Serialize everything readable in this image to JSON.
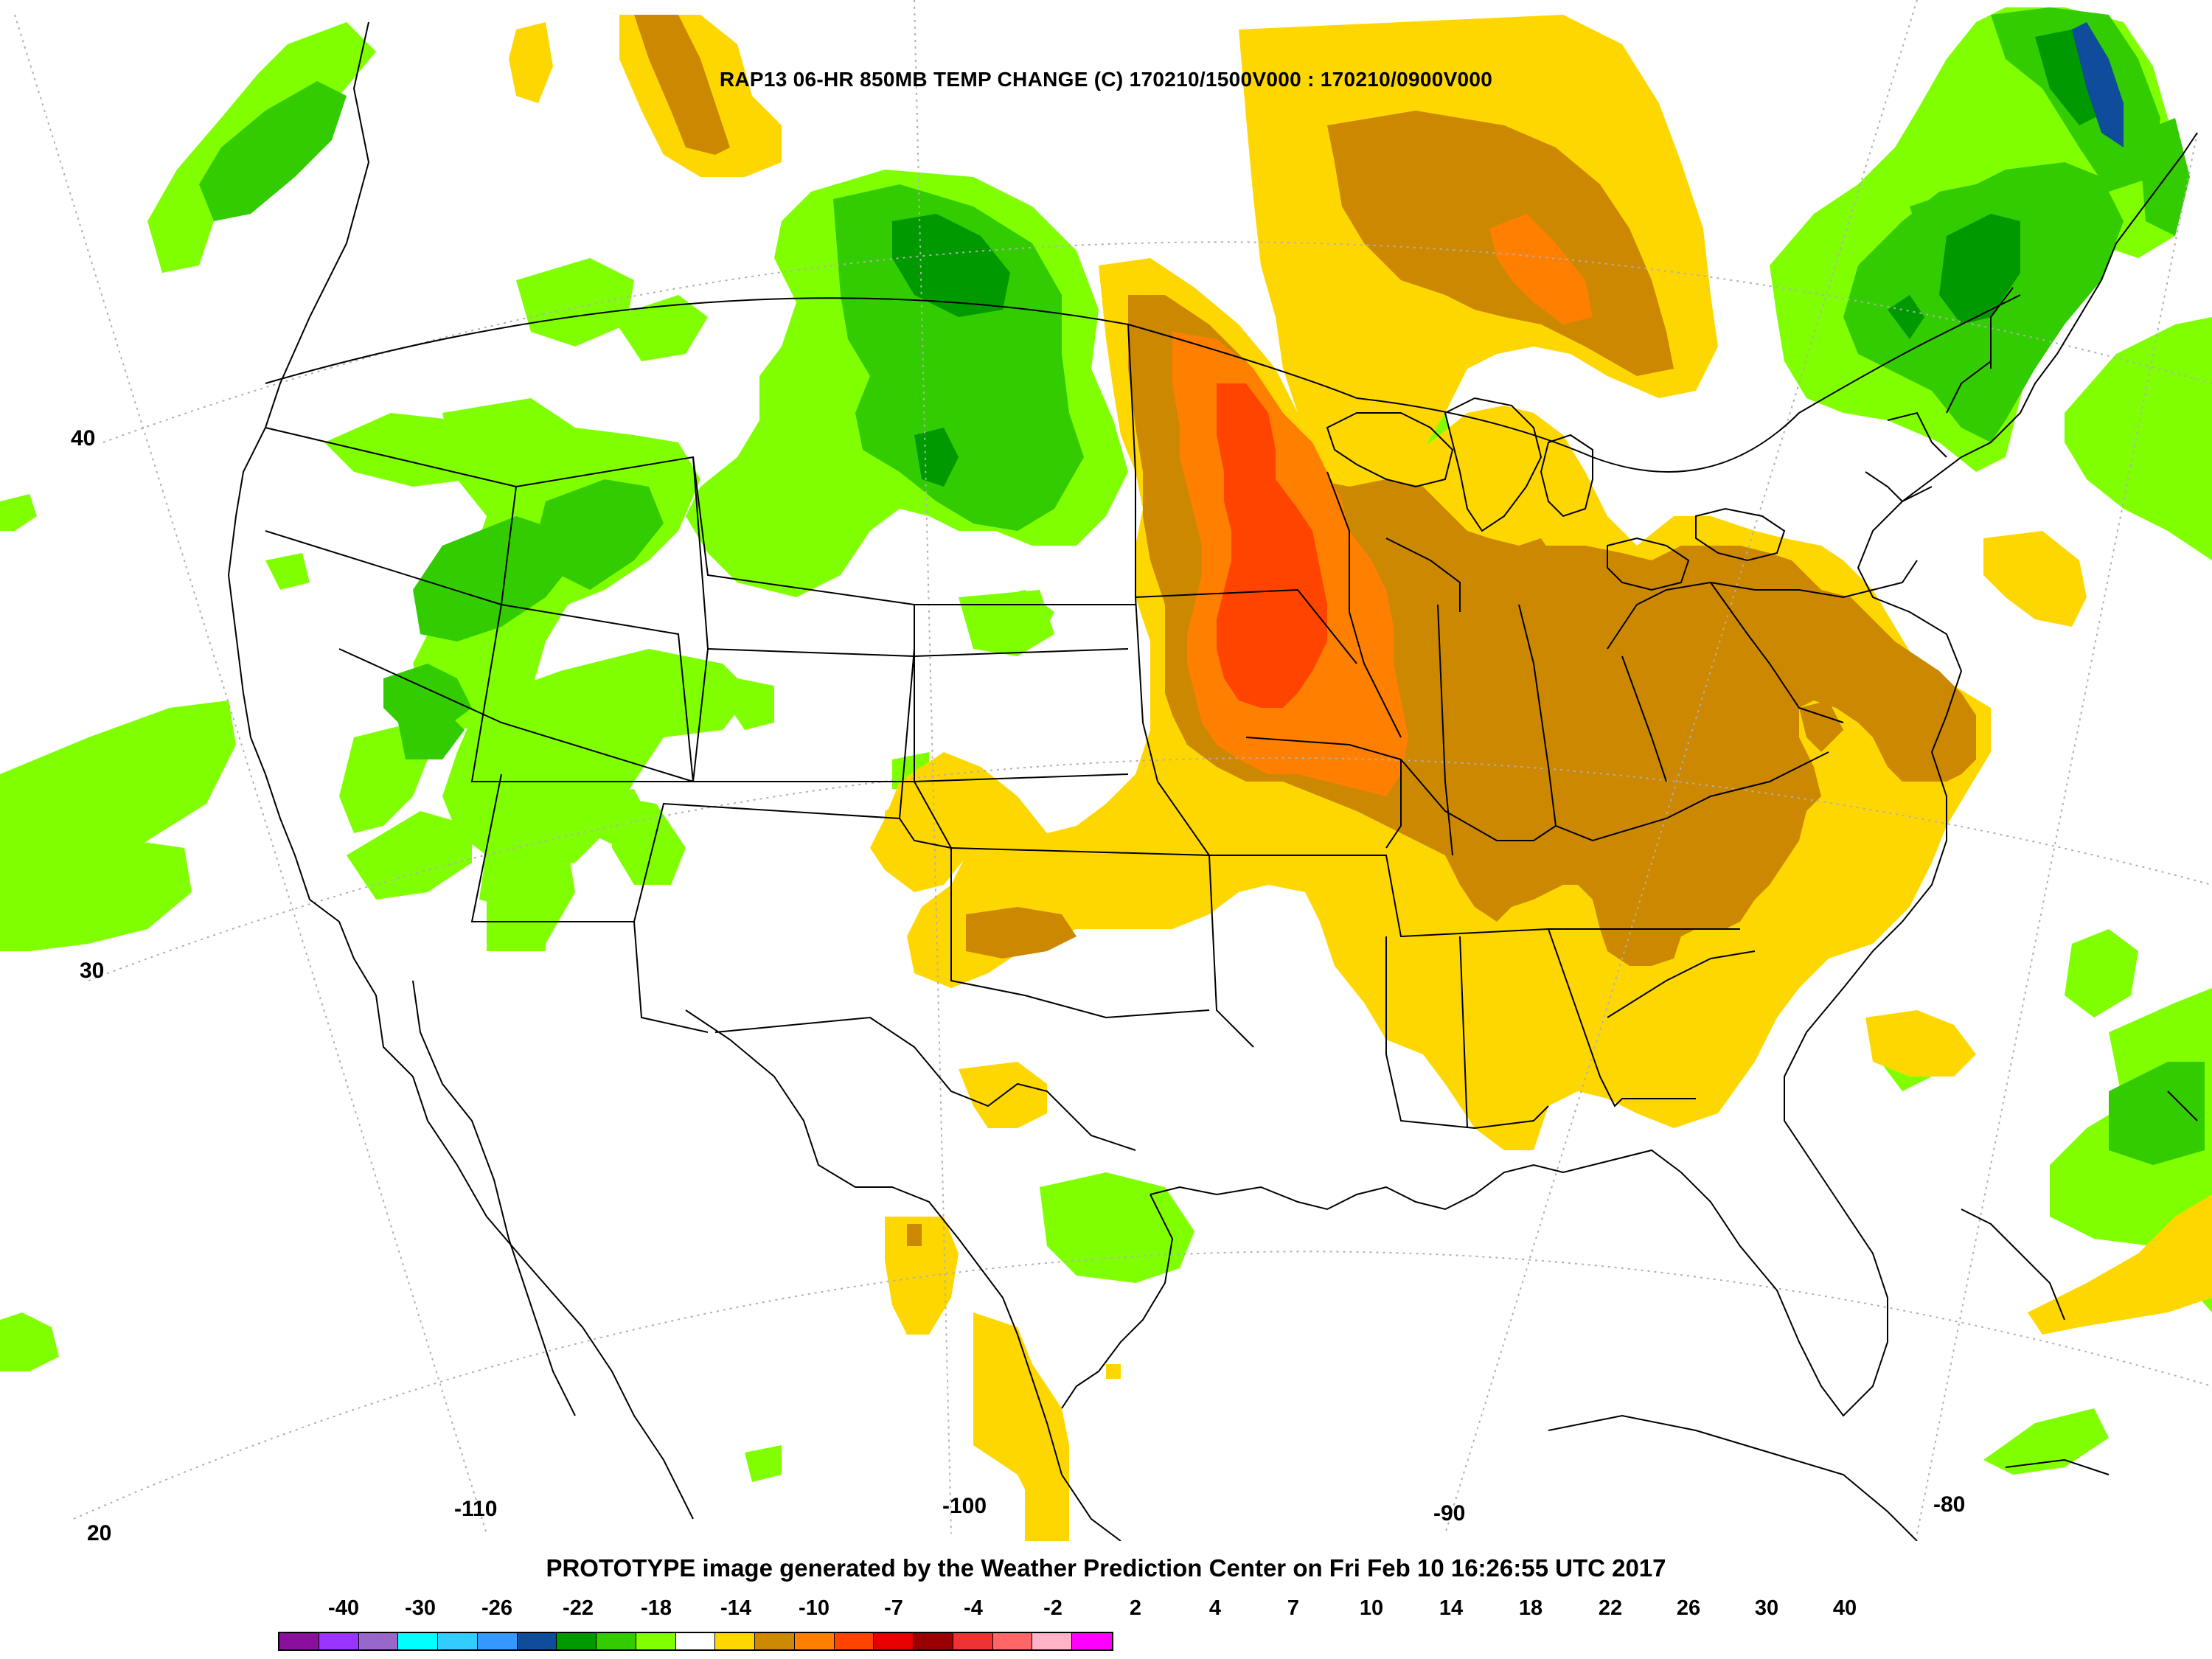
{
  "map": {
    "title": "RAP13 06-HR 850MB TEMP CHANGE (C) 170210/1500V000 : 170210/0900V000",
    "footer": "PROTOTYPE image generated by the Weather Prediction Center on Fri Feb 10 16:26:55 UTC 2017",
    "latitude_labels": [
      "40",
      "30",
      "20"
    ],
    "longitude_labels": [
      "-110",
      "-100",
      "-90",
      "-80"
    ]
  },
  "legend": {
    "tick_labels": [
      "-40",
      "-30",
      "-26",
      "-22",
      "-18",
      "-14",
      "-10",
      "-7",
      "-4",
      "-2",
      "2",
      "4",
      "7",
      "10",
      "14",
      "18",
      "22",
      "26",
      "30",
      "40"
    ],
    "colors": [
      "#8a0f9c",
      "#9933ff",
      "#9966cc",
      "#00ffff",
      "#33ccff",
      "#3399ff",
      "#0f4c9c",
      "#009900",
      "#33cc00",
      "#80ff00",
      "#ffffff",
      "#ffd700",
      "#cc8800",
      "#ff8000",
      "#ff4400",
      "#e60000",
      "#990000",
      "#ee3333",
      "#ff6666",
      "#ffb3c6",
      "#ff00ff"
    ]
  },
  "colors": {
    "green_light": "#80ff00",
    "green_mid": "#33cc00",
    "green_dark": "#009900",
    "yellow": "#ffd700",
    "brown": "#cc8800",
    "orange": "#ff8000",
    "red_orange": "#ff4400",
    "blue": "#0f4c9c"
  }
}
